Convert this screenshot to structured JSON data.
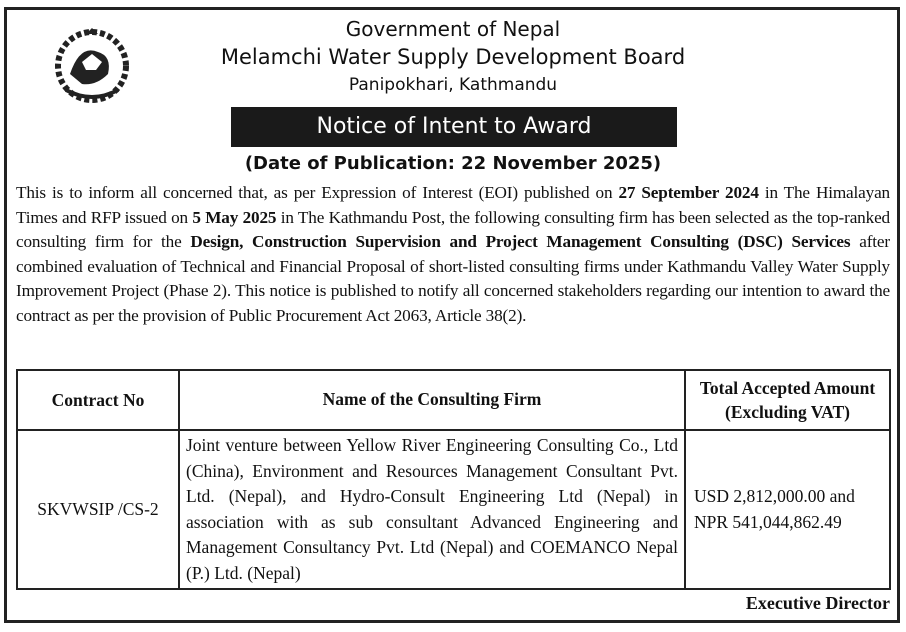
{
  "header": {
    "line1": "Government of Nepal",
    "line2": "Melamchi Water Supply Development Board",
    "line3": "Panipokhari, Kathmandu",
    "logo": "government-of-nepal-emblem"
  },
  "notice_title": "Notice of Intent to Award",
  "publication_date": "(Date of Publication: 22 November 2025)",
  "body": {
    "p1": "This is to inform all concerned that, as per Expression of Interest (EOI) published on ",
    "b1": "27 September 2024",
    "p2": " in The Himalayan Times and RFP issued on ",
    "b2": "5 May 2025",
    "p3": " in The Kathmandu Post, the following consulting firm has been selected as the top-ranked consulting firm for the ",
    "b3": "Design, Construction Supervision and Project Management Consulting (DSC) Services",
    "p4": " after combined evaluation of Technical and Financial Proposal of short-listed consulting firms under Kathmandu Valley Water Supply Improvement Project (Phase 2). This notice is published to notify all concerned stakeholders regarding our intention to award the contract as per the provision of Public Procurement Act 2063, Article 38(2)."
  },
  "table": {
    "headers": [
      "Contract No",
      "Name of the Consulting Firm",
      "Total Accepted Amount (Excluding VAT)"
    ],
    "rows": [
      {
        "contract_no": "SKVWSIP /CS-2",
        "firm": "Joint venture between Yellow River Engineering Consulting Co., Ltd (China), Environment and Resources Management Consultant Pvt. Ltd. (Nepal), and Hydro-Consult Engineering Ltd (Nepal) in association with as sub consultant Advanced Engineering and Management Consultancy Pvt. Ltd (Nepal) and COEMANCO Nepal (P.) Ltd. (Nepal)",
        "amount_usd": "USD 2,812,000.00 and",
        "amount_npr": "NPR 541,044,862.49"
      }
    ]
  },
  "signature": "Executive Director"
}
